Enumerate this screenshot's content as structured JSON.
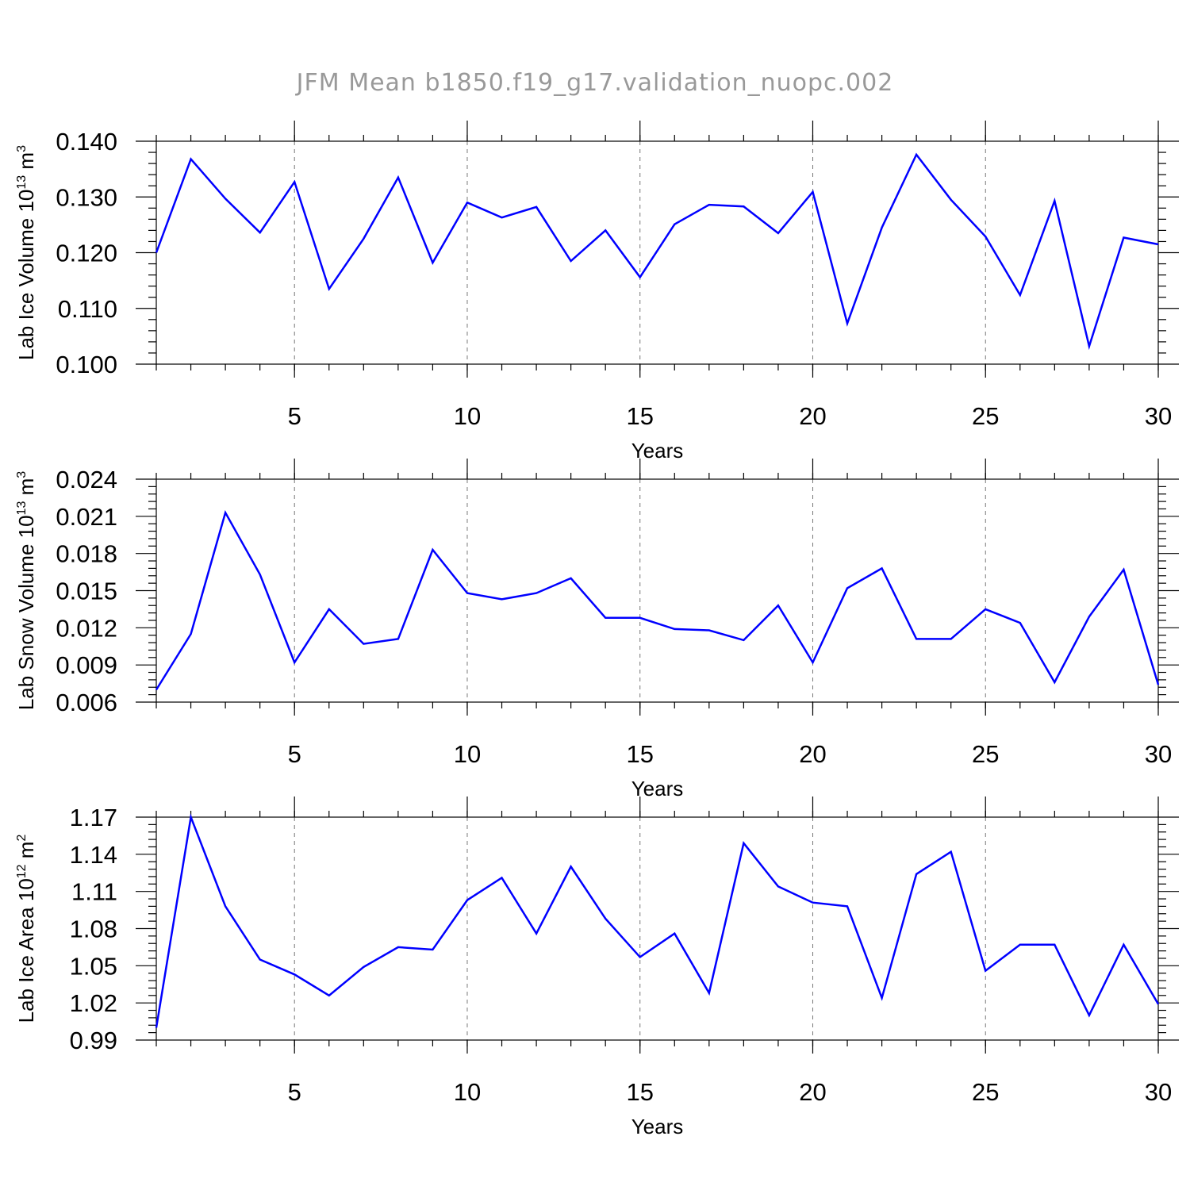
{
  "title": "JFM Mean b1850.f19_g17.validation_nuopc.002",
  "chart_data": [
    {
      "type": "line",
      "xlabel": "Years",
      "ylabel": "Lab Ice Volume 10",
      "ylabel_exp": "13",
      "ylabel_unit": "m",
      "ylabel_unit_exp": "3",
      "xlim": [
        1,
        30
      ],
      "ylim": [
        0.1,
        0.14
      ],
      "xticks": [
        5,
        10,
        15,
        20,
        25,
        30
      ],
      "xtick_labels": [
        "5",
        "10",
        "15",
        "20",
        "25",
        "30"
      ],
      "yticks": [
        0.1,
        0.11,
        0.12,
        0.13,
        0.14
      ],
      "ytick_labels": [
        "0.100",
        "0.110",
        "0.120",
        "0.130",
        "0.140"
      ],
      "grid_x": [
        5,
        10,
        15,
        20,
        25
      ],
      "line_color": "#0000ff",
      "x": [
        1,
        2,
        3,
        4,
        5,
        6,
        7,
        8,
        9,
        10,
        11,
        12,
        13,
        14,
        15,
        16,
        17,
        18,
        19,
        20,
        21,
        22,
        23,
        24,
        25,
        26,
        27,
        28,
        29,
        30
      ],
      "y": [
        0.12,
        0.1368,
        0.1297,
        0.1236,
        0.1327,
        0.1135,
        0.1225,
        0.1335,
        0.1182,
        0.129,
        0.1263,
        0.1282,
        0.1185,
        0.124,
        0.1156,
        0.1251,
        0.1286,
        0.1283,
        0.1235,
        0.1309,
        0.1073,
        0.1245,
        0.1376,
        0.1295,
        0.1229,
        0.1124,
        0.1293,
        0.1032,
        0.1227,
        0.1215
      ]
    },
    {
      "type": "line",
      "xlabel": "Years",
      "ylabel": "Lab Snow Volume 10",
      "ylabel_exp": "13",
      "ylabel_unit": "m",
      "ylabel_unit_exp": "3",
      "xlim": [
        1,
        30
      ],
      "ylim": [
        0.006,
        0.024
      ],
      "xticks": [
        5,
        10,
        15,
        20,
        25,
        30
      ],
      "xtick_labels": [
        "5",
        "10",
        "15",
        "20",
        "25",
        "30"
      ],
      "yticks": [
        0.006,
        0.009,
        0.012,
        0.015,
        0.018,
        0.021,
        0.024
      ],
      "ytick_labels": [
        "0.006",
        "0.009",
        "0.012",
        "0.015",
        "0.018",
        "0.021",
        "0.024"
      ],
      "grid_x": [
        5,
        10,
        15,
        20,
        25
      ],
      "line_color": "#0000ff",
      "x": [
        1,
        2,
        3,
        4,
        5,
        6,
        7,
        8,
        9,
        10,
        11,
        12,
        13,
        14,
        15,
        16,
        17,
        18,
        19,
        20,
        21,
        22,
        23,
        24,
        25,
        26,
        27,
        28,
        29,
        30
      ],
      "y": [
        0.007,
        0.0115,
        0.0213,
        0.0163,
        0.0092,
        0.0135,
        0.0107,
        0.0111,
        0.0183,
        0.0148,
        0.0143,
        0.0148,
        0.016,
        0.0128,
        0.0128,
        0.0119,
        0.0118,
        0.011,
        0.0138,
        0.0092,
        0.0152,
        0.0168,
        0.0111,
        0.0111,
        0.0135,
        0.0124,
        0.0076,
        0.0129,
        0.0167,
        0.0074
      ]
    },
    {
      "type": "line",
      "xlabel": "Years",
      "ylabel": "Lab Ice Area 10",
      "ylabel_exp": "12",
      "ylabel_unit": "m",
      "ylabel_unit_exp": "2",
      "xlim": [
        1,
        30
      ],
      "ylim": [
        0.99,
        1.17
      ],
      "xticks": [
        5,
        10,
        15,
        20,
        25,
        30
      ],
      "xtick_labels": [
        "5",
        "10",
        "15",
        "20",
        "25",
        "30"
      ],
      "yticks": [
        0.99,
        1.02,
        1.05,
        1.08,
        1.11,
        1.14,
        1.17
      ],
      "ytick_labels": [
        "0.99",
        "1.02",
        "1.05",
        "1.08",
        "1.11",
        "1.14",
        "1.17"
      ],
      "grid_x": [
        5,
        10,
        15,
        20,
        25
      ],
      "line_color": "#0000ff",
      "x": [
        1,
        2,
        3,
        4,
        5,
        6,
        7,
        8,
        9,
        10,
        11,
        12,
        13,
        14,
        15,
        16,
        17,
        18,
        19,
        20,
        21,
        22,
        23,
        24,
        25,
        26,
        27,
        28,
        29,
        30
      ],
      "y": [
        1.0,
        1.17,
        1.098,
        1.055,
        1.043,
        1.026,
        1.049,
        1.065,
        1.063,
        1.103,
        1.121,
        1.076,
        1.13,
        1.088,
        1.057,
        1.076,
        1.028,
        1.149,
        1.114,
        1.101,
        1.098,
        1.024,
        1.124,
        1.142,
        1.046,
        1.067,
        1.067,
        1.01,
        1.067,
        1.019
      ]
    }
  ]
}
